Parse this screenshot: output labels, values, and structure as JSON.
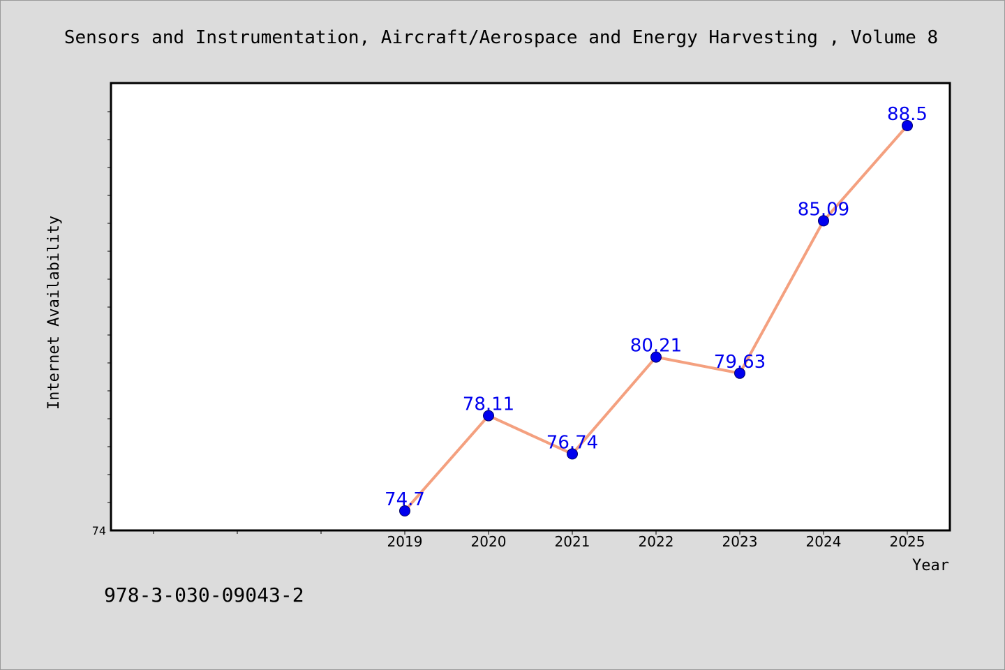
{
  "chart_data": {
    "type": "line",
    "title": "Sensors and Instrumentation, Aircraft/Aerospace and Energy Harvesting , Volume 8",
    "xlabel": "Year",
    "ylabel": "Internet Availability",
    "categories": [
      "2019",
      "2020",
      "2021",
      "2022",
      "2023",
      "2024",
      "2025"
    ],
    "data_labels": [
      "74.7",
      "78.11",
      "76.74",
      "80.21",
      "79.63",
      "85.09",
      "88.5"
    ],
    "series": [
      {
        "values": [
          74.7,
          78.11,
          76.74,
          80.21,
          79.63,
          85.09,
          88.5
        ]
      }
    ],
    "ylim": [
      74,
      90
    ],
    "yticks_labeled": [
      "74"
    ],
    "grid": false,
    "line_color": "#f4a07f",
    "marker_color": "#0000ee",
    "label_color": "#0000ee"
  },
  "footer": {
    "isbn": "978-3-030-09043-2"
  }
}
